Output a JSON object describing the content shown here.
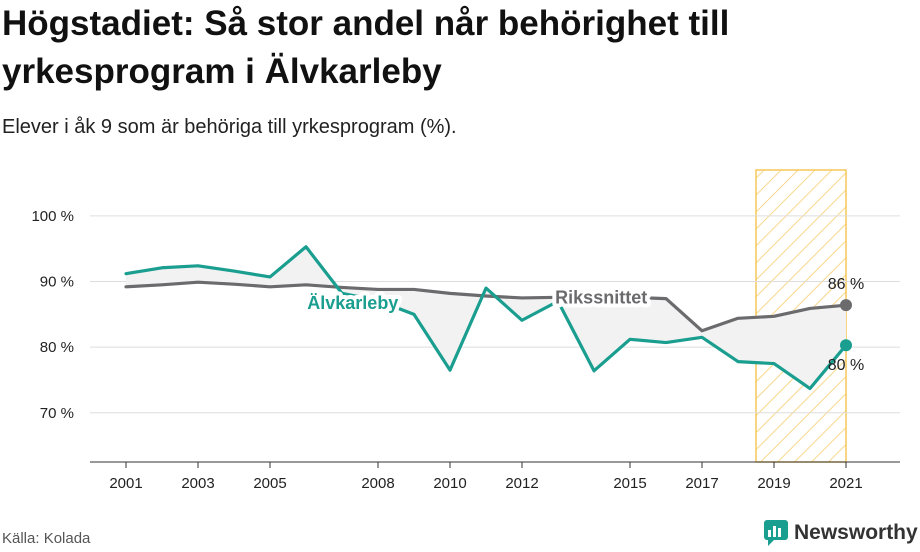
{
  "title": "Högstadiet: Så stor andel når behörighet till yrkesprogram i Älvkarleby",
  "subtitle": "Elever i åk 9 som är behöriga till yrkesprogram (%).",
  "source": "Källa: Kolada",
  "brand": "Newsworthy",
  "colors": {
    "municipality": "#1a9e8f",
    "national": "#6b6b6e",
    "highlight_stroke": "#f5c75a",
    "fill_between": "#f2f2f2"
  },
  "chart_data": {
    "type": "line",
    "x_ticks": [
      2001,
      2003,
      2005,
      2008,
      2010,
      2012,
      2015,
      2017,
      2019,
      2021
    ],
    "y_ticks": [
      70,
      80,
      90,
      100
    ],
    "y_tick_labels": [
      "70 %",
      "80 %",
      "90 %",
      "100 %"
    ],
    "ylim": [
      62.5,
      107
    ],
    "xlim": [
      2000,
      2022.5
    ],
    "highlight_period": [
      2018.5,
      2021
    ],
    "series": [
      {
        "name": "Älvkarleby",
        "color": "#1a9e8f",
        "x": [
          2001,
          2002,
          2003,
          2004,
          2005,
          2006,
          2007,
          2008,
          2009,
          2010,
          2011,
          2012,
          2013,
          2014,
          2015,
          2016,
          2017,
          2018,
          2019,
          2020,
          2021
        ],
        "values": [
          91.2,
          92.1,
          92.4,
          91.6,
          90.7,
          95.3,
          88.2,
          87.1,
          85.0,
          76.5,
          89.0,
          84.1,
          87.0,
          76.4,
          81.2,
          80.7,
          81.5,
          77.8,
          77.5,
          73.7,
          80.3
        ]
      },
      {
        "name": "Rikssnittet",
        "color": "#6b6b6e",
        "x": [
          2001,
          2002,
          2003,
          2004,
          2005,
          2006,
          2007,
          2008,
          2009,
          2010,
          2011,
          2012,
          2013,
          2014,
          2015,
          2016,
          2017,
          2018,
          2019,
          2020,
          2021
        ],
        "values": [
          89.2,
          89.5,
          89.9,
          89.6,
          89.2,
          89.5,
          89.1,
          88.8,
          88.8,
          88.2,
          87.8,
          87.5,
          87.6,
          87.7,
          87.6,
          87.4,
          82.5,
          84.4,
          84.7,
          85.9,
          86.4
        ]
      }
    ],
    "end_labels": {
      "Rikssnittet": "86 %",
      "Älvkarleby": "80 %"
    }
  }
}
